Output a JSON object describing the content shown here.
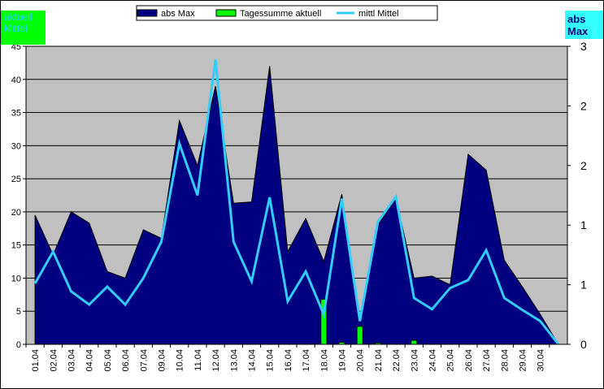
{
  "chart_data": {
    "type": "area-combo",
    "corner_left": "aktuell Mittel",
    "corner_right": "abs Max",
    "categories": [
      "01.04",
      "02.04",
      "03.04",
      "04.04",
      "05.04",
      "06.04",
      "07.04",
      "09.04",
      "10.04",
      "11.04",
      "12.04",
      "13.04",
      "14.04",
      "15.04",
      "16.04",
      "17.04",
      "18.04",
      "19.04",
      "20.04",
      "21.04",
      "22.04",
      "23.04",
      "24.04",
      "25.04",
      "26.04",
      "27.04",
      "28.04",
      "29.04",
      "30.04",
      null
    ],
    "series": [
      {
        "name": "abs Max",
        "kind": "area",
        "color": "#000080",
        "values": [
          19.5,
          13.5,
          20,
          18.3,
          11,
          10,
          17.3,
          16,
          33.8,
          27,
          39,
          21.3,
          21.5,
          42,
          14,
          19,
          12.5,
          22.7,
          3.5,
          18,
          22,
          10,
          10.3,
          9,
          28.7,
          26.3,
          12.7,
          8.7,
          4.5,
          0
        ]
      },
      {
        "name": "Tagessumme aktuell",
        "kind": "bar",
        "color": "#00ff00",
        "values": [
          0,
          0,
          0,
          0,
          0,
          0,
          0,
          0,
          0,
          0,
          0,
          0,
          0,
          0,
          0,
          0,
          6.8,
          0.3,
          2.7,
          0.2,
          0,
          0.6,
          0,
          0,
          0,
          0,
          0,
          0,
          0,
          0
        ]
      },
      {
        "name": "mittl Mittel",
        "kind": "line",
        "color": "#33ccff",
        "values": [
          9.2,
          14,
          8,
          6,
          8.7,
          6,
          10,
          15.5,
          30.3,
          22.5,
          43,
          15.5,
          9.5,
          22.2,
          6.5,
          11,
          4.5,
          22,
          3.5,
          18.5,
          22.3,
          7,
          5.3,
          8.5,
          9.7,
          14.2,
          7,
          5.2,
          3.5,
          0
        ]
      }
    ],
    "ylim": [
      0,
      45
    ],
    "yticks": [
      0,
      5,
      10,
      15,
      20,
      25,
      30,
      35,
      40,
      45
    ],
    "y2lim": [
      0,
      2.5
    ],
    "y2ticks": [
      0,
      {
        "value": 0.5,
        "label": "1"
      },
      1,
      {
        "value": 1.5,
        "label": "2"
      },
      2,
      {
        "value": 2.5,
        "label": "3"
      }
    ],
    "grid": true
  }
}
